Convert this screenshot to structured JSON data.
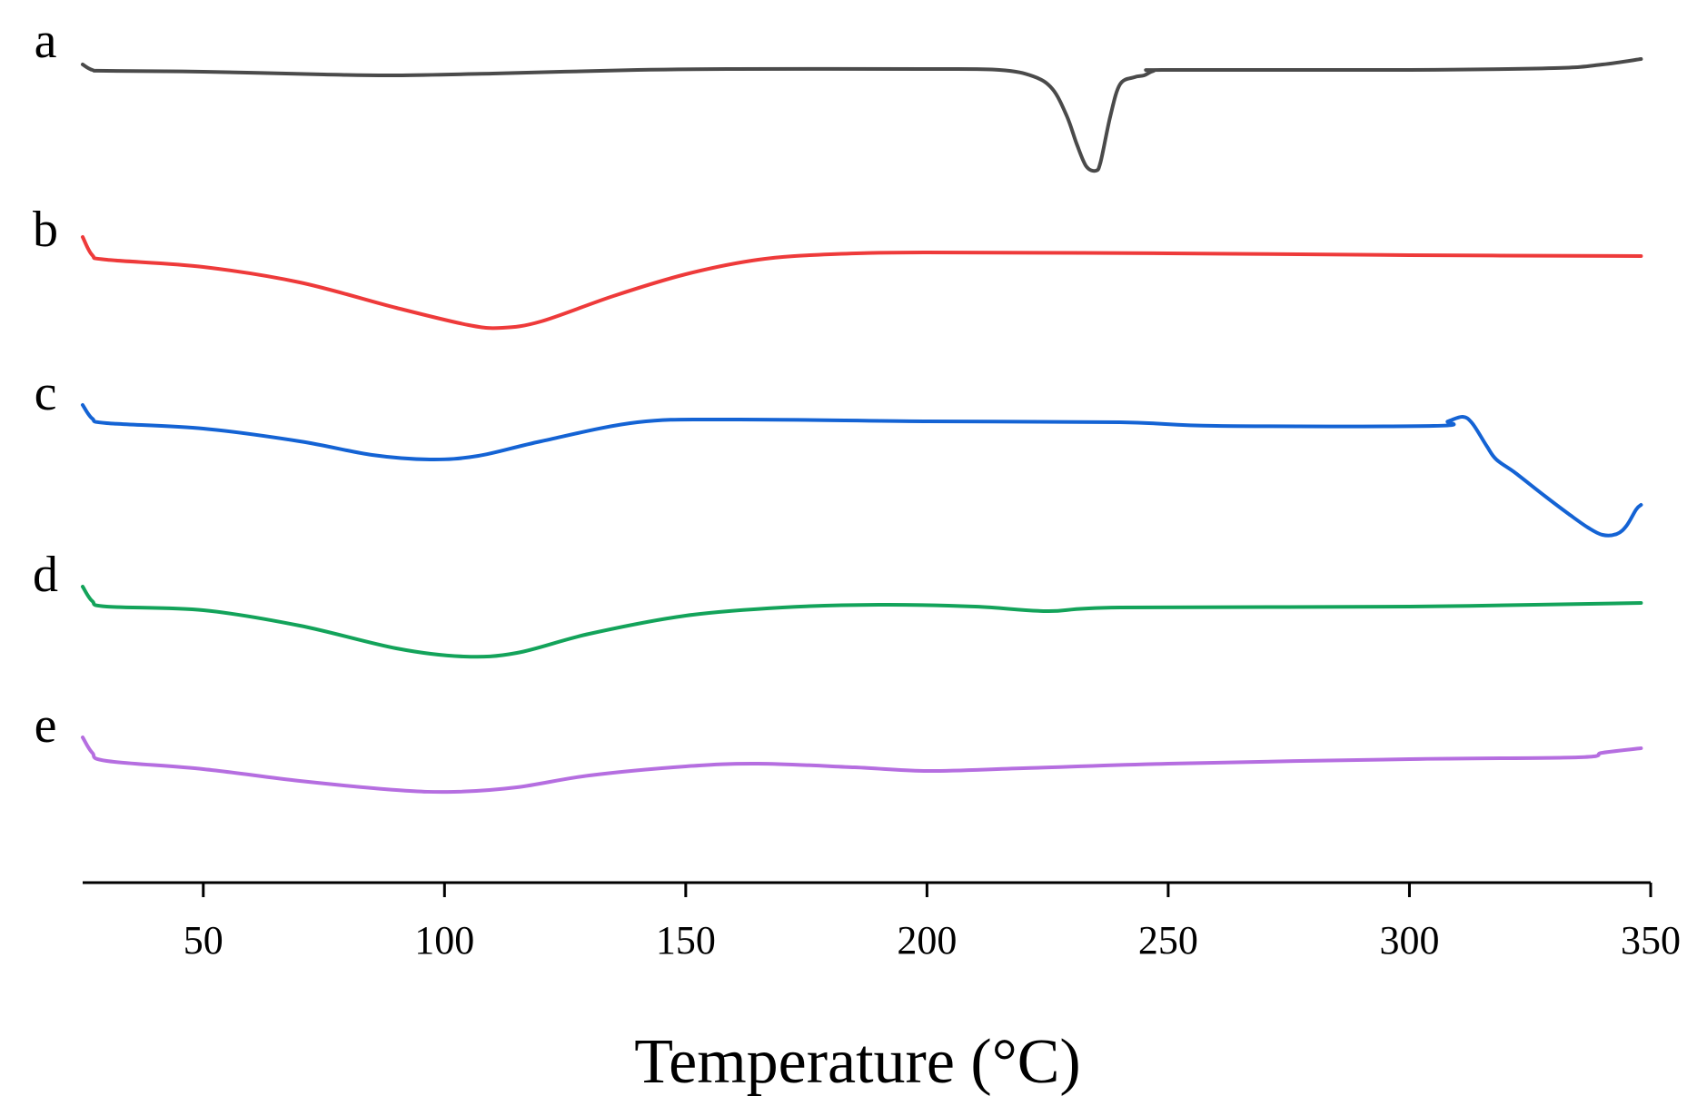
{
  "chart_data": {
    "type": "line",
    "title": "",
    "xlabel": "Temperature (°C)",
    "ylabel": "",
    "xlim": [
      25,
      350
    ],
    "xticks": [
      50,
      100,
      150,
      200,
      250,
      300,
      350
    ],
    "grid": false,
    "legend": "none",
    "series": [
      {
        "name": "a",
        "color": "#4a4a4a",
        "points": [
          [
            25,
            0.3
          ],
          [
            27,
            0.9
          ],
          [
            30,
            1.0
          ],
          [
            50,
            1.1
          ],
          [
            75,
            1.4
          ],
          [
            90,
            1.5
          ],
          [
            110,
            1.3
          ],
          [
            140,
            0.9
          ],
          [
            160,
            0.8
          ],
          [
            200,
            0.8
          ],
          [
            215,
            0.9
          ],
          [
            222,
            1.6
          ],
          [
            226,
            3.0
          ],
          [
            229,
            6.0
          ],
          [
            231,
            9.0
          ],
          [
            233,
            11.5
          ],
          [
            235,
            12.0
          ],
          [
            236,
            11.0
          ],
          [
            238,
            6.0
          ],
          [
            240,
            2.5
          ],
          [
            243,
            1.7
          ],
          [
            245,
            1.5
          ],
          [
            247,
            1.0
          ],
          [
            250,
            0.9
          ],
          [
            300,
            0.9
          ],
          [
            330,
            0.7
          ],
          [
            340,
            0.3
          ],
          [
            348,
            -0.3
          ]
        ]
      },
      {
        "name": "b",
        "color": "#ee3a3a",
        "points": [
          [
            25,
            -1.5
          ],
          [
            27,
            0.5
          ],
          [
            30,
            1.0
          ],
          [
            50,
            1.8
          ],
          [
            70,
            3.5
          ],
          [
            90,
            6.3
          ],
          [
            105,
            8.2
          ],
          [
            112,
            8.5
          ],
          [
            120,
            7.8
          ],
          [
            135,
            5.0
          ],
          [
            150,
            2.6
          ],
          [
            165,
            1.0
          ],
          [
            180,
            0.4
          ],
          [
            200,
            0.2
          ],
          [
            250,
            0.3
          ],
          [
            300,
            0.5
          ],
          [
            348,
            0.6
          ]
        ]
      },
      {
        "name": "c",
        "color": "#1463d4",
        "points": [
          [
            25,
            -1.0
          ],
          [
            27,
            0.5
          ],
          [
            30,
            1.0
          ],
          [
            50,
            1.6
          ],
          [
            70,
            3.0
          ],
          [
            85,
            4.5
          ],
          [
            97,
            5.0
          ],
          [
            107,
            4.6
          ],
          [
            120,
            3.0
          ],
          [
            140,
            0.9
          ],
          [
            160,
            0.6
          ],
          [
            200,
            0.8
          ],
          [
            240,
            0.9
          ],
          [
            260,
            1.3
          ],
          [
            305,
            1.3
          ],
          [
            308,
            0.8
          ],
          [
            311,
            0.3
          ],
          [
            313,
            1.0
          ],
          [
            316,
            3.5
          ],
          [
            318,
            5.0
          ],
          [
            322,
            6.5
          ],
          [
            328,
            9.0
          ],
          [
            333,
            11.0
          ],
          [
            337,
            12.5
          ],
          [
            340,
            13.3
          ],
          [
            343,
            13.2
          ],
          [
            345,
            12.3
          ],
          [
            347,
            10.5
          ],
          [
            348,
            10.0
          ]
        ]
      },
      {
        "name": "d",
        "color": "#13a35a",
        "points": [
          [
            25,
            -1.0
          ],
          [
            27,
            0.6
          ],
          [
            30,
            1.2
          ],
          [
            50,
            1.6
          ],
          [
            70,
            3.3
          ],
          [
            90,
            5.8
          ],
          [
            104,
            6.7
          ],
          [
            115,
            6.3
          ],
          [
            130,
            4.2
          ],
          [
            150,
            2.2
          ],
          [
            170,
            1.3
          ],
          [
            190,
            1.0
          ],
          [
            210,
            1.2
          ],
          [
            225,
            1.7
          ],
          [
            240,
            1.3
          ],
          [
            300,
            1.2
          ],
          [
            348,
            0.8
          ]
        ]
      },
      {
        "name": "e",
        "color": "#b56ee0",
        "points": [
          [
            25,
            -1.0
          ],
          [
            27,
            0.7
          ],
          [
            30,
            1.6
          ],
          [
            50,
            2.5
          ],
          [
            70,
            3.8
          ],
          [
            90,
            4.8
          ],
          [
            102,
            5.0
          ],
          [
            115,
            4.5
          ],
          [
            130,
            3.2
          ],
          [
            150,
            2.2
          ],
          [
            165,
            1.9
          ],
          [
            185,
            2.3
          ],
          [
            200,
            2.7
          ],
          [
            220,
            2.4
          ],
          [
            250,
            1.9
          ],
          [
            300,
            1.4
          ],
          [
            335,
            1.2
          ],
          [
            340,
            0.7
          ],
          [
            348,
            0.2
          ]
        ]
      }
    ]
  }
}
